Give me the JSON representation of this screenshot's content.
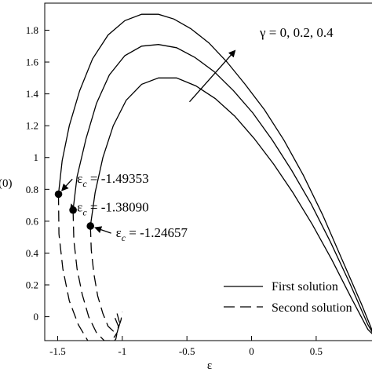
{
  "chart_data": {
    "type": "line",
    "xlabel": "ε",
    "ylabel": "(0)",
    "xlim": [
      -1.6,
      0.95
    ],
    "ylim": [
      -0.15,
      1.97
    ],
    "x_ticks": [
      {
        "value": -1.5,
        "label": "-1.5"
      },
      {
        "value": -1,
        "label": "-1"
      },
      {
        "value": -0.5,
        "label": "-0.5"
      },
      {
        "value": 0,
        "label": "0"
      },
      {
        "value": 0.5,
        "label": "0.5"
      }
    ],
    "y_ticks": [
      {
        "value": 0,
        "label": "0"
      },
      {
        "value": 0.2,
        "label": "0.2"
      },
      {
        "value": 0.4,
        "label": "0.4"
      },
      {
        "value": 0.6,
        "label": "0.6"
      },
      {
        "value": 0.8,
        "label": "0.8"
      },
      {
        "value": 1.0,
        "label": "1"
      },
      {
        "value": 1.2,
        "label": "1.2"
      },
      {
        "value": 1.4,
        "label": "1.4"
      },
      {
        "value": 1.6,
        "label": "1.6"
      },
      {
        "value": 1.8,
        "label": "1.8"
      }
    ],
    "series": [
      {
        "name": "First solution",
        "gamma": 0,
        "style": "solid",
        "x": [
          -1.49353,
          -1.465,
          -1.41,
          -1.33,
          -1.23,
          -1.11,
          -0.98,
          -0.85,
          -0.72,
          -0.6,
          -0.47,
          -0.33,
          -0.19,
          -0.05,
          0.1,
          0.25,
          0.4,
          0.55,
          0.7,
          0.85,
          0.95
        ],
        "y": [
          0.77,
          0.98,
          1.2,
          1.42,
          1.62,
          1.77,
          1.86,
          1.9,
          1.9,
          1.87,
          1.81,
          1.72,
          1.6,
          1.46,
          1.3,
          1.11,
          0.89,
          0.64,
          0.36,
          0.08,
          -0.12
        ]
      },
      {
        "name": "First solution",
        "gamma": 0.2,
        "style": "solid",
        "x": [
          -1.3809,
          -1.35,
          -1.28,
          -1.2,
          -1.1,
          -0.98,
          -0.85,
          -0.72,
          -0.58,
          -0.44,
          -0.29,
          -0.14,
          0.01,
          0.16,
          0.31,
          0.46,
          0.61,
          0.76,
          0.9,
          0.95
        ],
        "y": [
          0.67,
          0.88,
          1.12,
          1.34,
          1.52,
          1.64,
          1.7,
          1.71,
          1.69,
          1.63,
          1.54,
          1.42,
          1.28,
          1.11,
          0.92,
          0.71,
          0.47,
          0.21,
          -0.05,
          -0.12
        ]
      },
      {
        "name": "First solution",
        "gamma": 0.4,
        "style": "solid",
        "x": [
          -1.24657,
          -1.21,
          -1.15,
          -1.07,
          -0.97,
          -0.85,
          -0.72,
          -0.58,
          -0.43,
          -0.28,
          -0.13,
          0.02,
          0.17,
          0.32,
          0.47,
          0.62,
          0.77,
          0.9,
          0.95
        ],
        "y": [
          0.57,
          0.78,
          1.0,
          1.2,
          1.36,
          1.46,
          1.5,
          1.5,
          1.45,
          1.37,
          1.26,
          1.12,
          0.96,
          0.78,
          0.58,
          0.36,
          0.12,
          -0.08,
          -0.12
        ]
      },
      {
        "name": "Second solution",
        "gamma": 0,
        "style": "dashed",
        "x": [
          -1.49353,
          -1.49,
          -1.46,
          -1.41,
          -1.34,
          -1.26,
          -1.18,
          -1.11,
          -1.05,
          -1.03,
          -1.06
        ],
        "y": [
          0.77,
          0.52,
          0.3,
          0.1,
          -0.05,
          -0.16,
          -0.2,
          -0.2,
          -0.14,
          -0.06,
          0.0
        ]
      },
      {
        "name": "Second solution",
        "gamma": 0.2,
        "style": "dashed",
        "x": [
          -1.3809,
          -1.375,
          -1.35,
          -1.31,
          -1.26,
          -1.2,
          -1.14,
          -1.08,
          -1.04,
          -1.02,
          -1.04
        ],
        "y": [
          0.67,
          0.48,
          0.3,
          0.14,
          0.0,
          -0.1,
          -0.15,
          -0.15,
          -0.1,
          -0.04,
          0.02
        ]
      },
      {
        "name": "Second solution",
        "gamma": 0.4,
        "style": "dashed",
        "x": [
          -1.24657,
          -1.24,
          -1.22,
          -1.19,
          -1.15,
          -1.11,
          -1.07,
          -1.03,
          -1.01,
          -1.0
        ],
        "y": [
          0.57,
          0.42,
          0.27,
          0.13,
          0.02,
          -0.06,
          -0.09,
          -0.07,
          -0.02,
          0.03
        ]
      }
    ],
    "critical_points": [
      {
        "x": -1.49353,
        "y": 0.77,
        "label": "ε_c = -1.49353",
        "main": "ε",
        "sub": "c",
        "value_text": " = -1.49353",
        "label_at": [
          -1.35,
          0.84
        ]
      },
      {
        "x": -1.3809,
        "y": 0.67,
        "label": "ε_c = -1.38090",
        "main": "ε",
        "sub": "c",
        "value_text": " = -1.38090",
        "label_at": [
          -1.35,
          0.66
        ]
      },
      {
        "x": -1.24657,
        "y": 0.57,
        "label": "ε_c = -1.24657",
        "main": "ε",
        "sub": "c",
        "value_text": " = -1.24657",
        "label_at": [
          -1.05,
          0.5
        ]
      }
    ],
    "gamma_annotation": {
      "text": "γ = 0, 0.2, 0.4",
      "arrow_from": [
        -0.48,
        1.35
      ],
      "arrow_to": [
        -0.13,
        1.67
      ]
    },
    "legend": {
      "placement": "bottom-right",
      "entries": [
        {
          "label": "First solution",
          "style": "solid"
        },
        {
          "label": "Second solution",
          "style": "dashed"
        }
      ]
    },
    "grid": false
  }
}
